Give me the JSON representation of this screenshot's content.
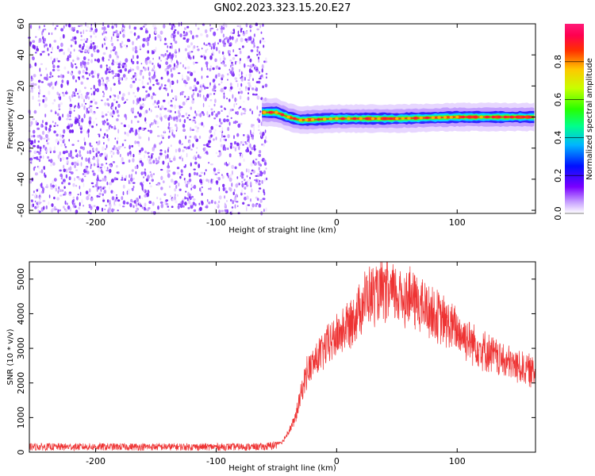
{
  "title": "GN02.2023.323.15.20.E27",
  "chart_data": [
    {
      "type": "heatmap",
      "xlabel": "Height of straight line (km)",
      "ylabel": "Frequency (Hz)",
      "xlim": [
        -255,
        165
      ],
      "ylim": [
        -62,
        60
      ],
      "xticks": [
        -200,
        -100,
        0,
        100
      ],
      "yticks": [
        -60,
        -40,
        -20,
        0,
        20,
        40,
        60
      ],
      "noise_region_x": [
        -255,
        -62
      ],
      "signal_center_hz": [
        {
          "x": -62,
          "y": 3
        },
        {
          "x": -50,
          "y": 3
        },
        {
          "x": -40,
          "y": 0
        },
        {
          "x": -30,
          "y": -2
        },
        {
          "x": 0,
          "y": -1
        },
        {
          "x": 50,
          "y": -1
        },
        {
          "x": 100,
          "y": 0
        },
        {
          "x": 165,
          "y": 0
        }
      ],
      "colorbar": {
        "label": "Normalized spectral amplitude",
        "ticks": [
          0.0,
          0.2,
          0.4,
          0.6,
          0.8
        ],
        "tick_labels": [
          "0.0",
          "0.2",
          "0.4",
          "0.6",
          "0.8"
        ],
        "range": [
          0,
          1
        ]
      }
    },
    {
      "type": "line",
      "xlabel": "Height of straight line (km)",
      "ylabel": "SNR (10 * v/v)",
      "xlim": [
        -255,
        165
      ],
      "ylim": [
        0,
        5500
      ],
      "xticks": [
        -200,
        -100,
        0,
        100
      ],
      "yticks": [
        0,
        1000,
        2000,
        3000,
        4000,
        5000
      ],
      "color": "#ee3333",
      "envelope": [
        {
          "x": -255,
          "y": 200
        },
        {
          "x": -60,
          "y": 200
        },
        {
          "x": -45,
          "y": 300
        },
        {
          "x": -35,
          "y": 900
        },
        {
          "x": -25,
          "y": 2300
        },
        {
          "x": -10,
          "y": 3000
        },
        {
          "x": 10,
          "y": 3700
        },
        {
          "x": 25,
          "y": 4500
        },
        {
          "x": 40,
          "y": 4600
        },
        {
          "x": 60,
          "y": 4500
        },
        {
          "x": 80,
          "y": 4000
        },
        {
          "x": 100,
          "y": 3500
        },
        {
          "x": 120,
          "y": 3000
        },
        {
          "x": 140,
          "y": 2600
        },
        {
          "x": 165,
          "y": 2300
        }
      ],
      "noise_amplitude": 0.15
    }
  ]
}
